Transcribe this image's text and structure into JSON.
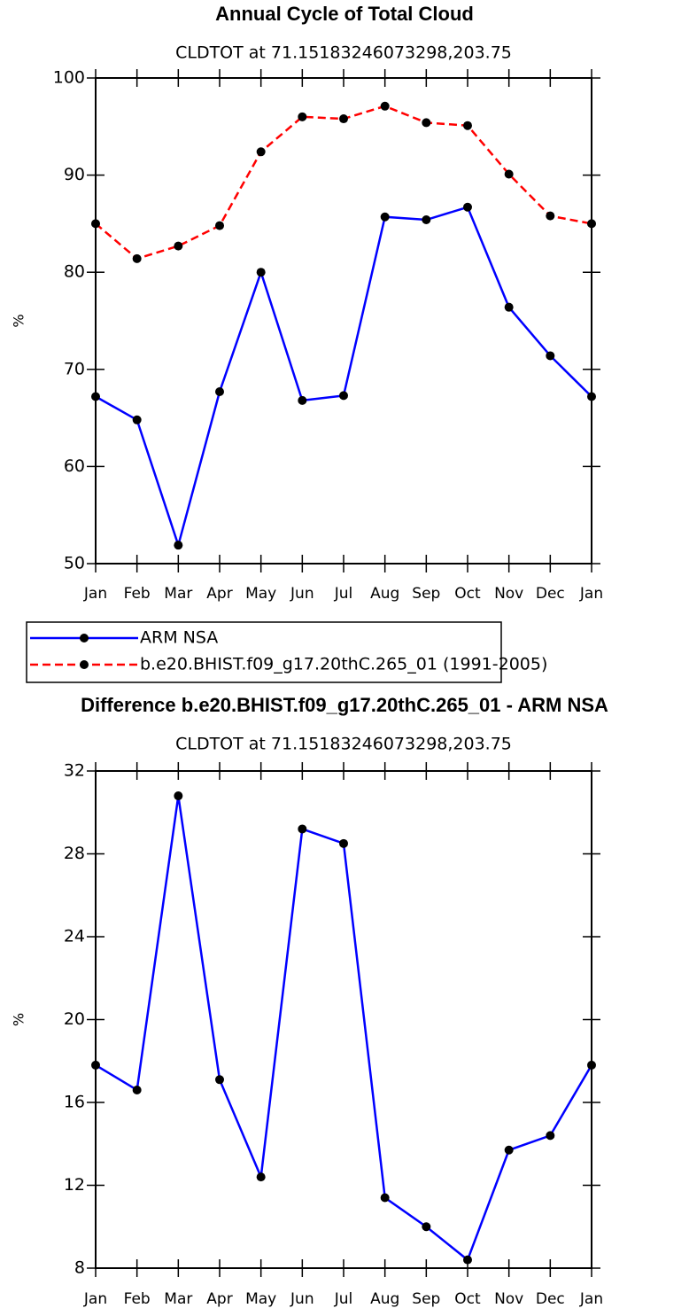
{
  "chart_data": [
    {
      "type": "line",
      "title": "Annual Cycle of Total Cloud",
      "subtitle": "CLDTOT at 71.15183246073298,203.75",
      "y_label": "%",
      "categories": [
        "Jan",
        "Feb",
        "Mar",
        "Apr",
        "May",
        "Jun",
        "Jul",
        "Aug",
        "Sep",
        "Oct",
        "Nov",
        "Dec",
        "Jan"
      ],
      "ylim": [
        50,
        100
      ],
      "yticks": [
        50,
        60,
        70,
        80,
        90,
        100
      ],
      "series": [
        {
          "name": "ARM NSA",
          "color": "#0000ff",
          "dash": false,
          "values": [
            67.2,
            64.8,
            51.9,
            67.7,
            80.0,
            66.8,
            67.3,
            85.7,
            85.4,
            86.7,
            76.4,
            71.4,
            67.2
          ]
        },
        {
          "name": "b.e20.BHIST.f09_g17.20thC.265_01 (1991-2005)",
          "color": "#ff0000",
          "dash": true,
          "values": [
            85.0,
            81.4,
            82.7,
            84.8,
            92.4,
            96.0,
            95.8,
            97.1,
            95.4,
            95.1,
            90.1,
            85.8,
            85.0
          ]
        }
      ]
    },
    {
      "type": "line",
      "title": "Difference b.e20.BHIST.f09_g17.20thC.265_01 - ARM NSA",
      "subtitle": "CLDTOT at 71.15183246073298,203.75",
      "y_label": "%",
      "categories": [
        "Jan",
        "Feb",
        "Mar",
        "Apr",
        "May",
        "Jun",
        "Jul",
        "Aug",
        "Sep",
        "Oct",
        "Nov",
        "Dec",
        "Jan"
      ],
      "ylim": [
        8,
        32
      ],
      "yticks": [
        8,
        12,
        16,
        20,
        24,
        28,
        32
      ],
      "series": [
        {
          "color": "#0000ff",
          "dash": false,
          "values": [
            17.8,
            16.6,
            30.8,
            17.1,
            12.4,
            29.2,
            28.5,
            11.4,
            10.0,
            8.4,
            13.7,
            14.4,
            17.8
          ]
        }
      ]
    }
  ]
}
